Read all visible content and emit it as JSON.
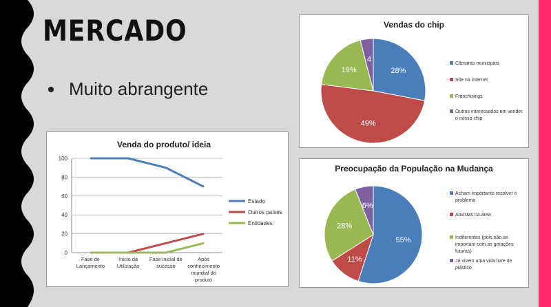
{
  "slide": {
    "title": "MERCADO",
    "bullets": [
      "Muito abrangente"
    ],
    "colors": {
      "background": "#d9d9d9",
      "left_band": "#000000",
      "right_band": "#ff2a6d"
    }
  },
  "chart_data": [
    {
      "type": "line",
      "title": "Venda do produto/  ideia",
      "categories": [
        "Fase de Lançamento",
        "Inicio da Utilização",
        "Fase inicial de sucesso",
        "Após conhecimento mundial do produto"
      ],
      "category_lines": [
        [
          "Fase de",
          "Lançamento"
        ],
        [
          "Inicio da",
          "Utilização"
        ],
        [
          "Fase inicial de",
          "sucesso"
        ],
        [
          "Após",
          "conhecimento",
          "mundial do",
          "produto"
        ]
      ],
      "series": [
        {
          "name": "Estado",
          "values": [
            100,
            100,
            90,
            70
          ],
          "color": "#4a7ebb"
        },
        {
          "name": "Outros países",
          "values": [
            0,
            0,
            10,
            20
          ],
          "color": "#be4b48"
        },
        {
          "name": "Entidades",
          "values": [
            0,
            0,
            0,
            10
          ],
          "color": "#98b954"
        }
      ],
      "ylim": [
        0,
        100
      ],
      "yticks": [
        "0",
        "20",
        "40",
        "60",
        "80",
        "100"
      ],
      "grid": true,
      "legend": "right"
    },
    {
      "type": "pie",
      "title": "Vendas do chip",
      "slices": [
        {
          "label": "Câmaras municipais",
          "value": 28,
          "text": "28%",
          "color": "#4a7ebb"
        },
        {
          "label": "Site na internet",
          "value": 49,
          "text": "49%",
          "color": "#be4b48"
        },
        {
          "label": "Franchisings",
          "value": 19,
          "text": "19%",
          "color": "#98b954"
        },
        {
          "label": "Outros interessados em vender o nosso chip",
          "value": 4,
          "text": "4",
          "color": "#7d60a0"
        }
      ],
      "legend_lines": [
        [
          "Câmaras municipais"
        ],
        [
          "Site na internet"
        ],
        [
          "Franchisings"
        ],
        [
          "Outros interessados em vender",
          "o nosso chip"
        ]
      ],
      "legend": "right"
    },
    {
      "type": "pie",
      "title": "Preocupação da População na Mudança",
      "slices": [
        {
          "label": "Acham importante resolver o problema",
          "value": 55,
          "text": "55%",
          "color": "#4a7ebb"
        },
        {
          "label": "Ativistas na área",
          "value": 11,
          "text": "11%",
          "color": "#be4b48"
        },
        {
          "label": "Indiferentes (pois não se importam com as gerações futuras)",
          "value": 28,
          "text": "28%",
          "color": "#98b954"
        },
        {
          "label": "Já vivem uma vida livre de plástico",
          "value": 6,
          "text": "6%",
          "color": "#7d60a0"
        }
      ],
      "legend_lines": [
        [
          "Acham importante resolver o",
          "problema"
        ],
        [
          "Ativistas na área"
        ],
        [
          "Indiferentes (pois não se",
          "importam com as gerações",
          "futuras)"
        ],
        [
          "Já vivem uma vida livre de",
          "plástico"
        ]
      ],
      "legend": "right"
    }
  ]
}
